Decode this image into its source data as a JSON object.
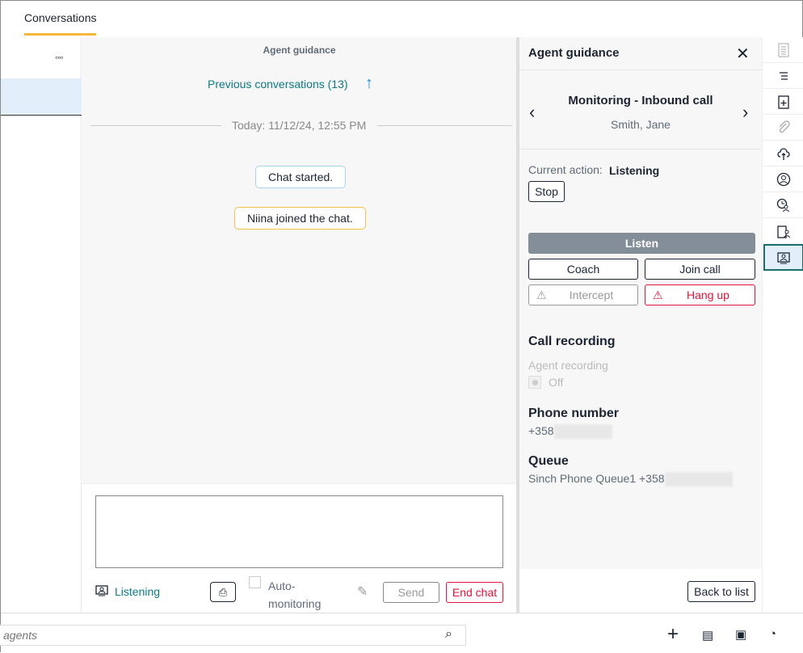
{
  "header": {
    "tab": "Conversations"
  },
  "left": {
    "more": "◦◦◦"
  },
  "chat": {
    "title": "Agent guidance",
    "previous": "Previous conversations (13)",
    "date": "Today: 11/12/24, 12:55 PM",
    "messages": [
      "Chat started.",
      "Niina joined the chat."
    ]
  },
  "compose": {
    "status": "Listening",
    "auto": "Auto-",
    "auto2": "monitoring",
    "send": "Send",
    "end": "End chat"
  },
  "panel": {
    "title": "Agent guidance",
    "call_title": "Monitoring - Inbound call",
    "contact": "Smith, Jane",
    "current_action_label": "Current action:",
    "current_action": "Listening",
    "stop": "Stop",
    "listen": "Listen",
    "coach": "Coach",
    "join": "Join call",
    "intercept": "Intercept",
    "hangup": "Hang up",
    "recording_title": "Call recording",
    "agent_recording": "Agent recording",
    "off": "Off",
    "phone_title": "Phone number",
    "phone": "+358",
    "queue_title": "Queue",
    "queue": "Sinch Phone Queue1 +358",
    "back": "Back to list"
  },
  "bottom": {
    "search_placeholder": "agents"
  },
  "colors": {
    "accent": "#f5b83d",
    "teal": "#0a7a86",
    "danger": "#e0143c",
    "selected": "#1a6d6d"
  }
}
